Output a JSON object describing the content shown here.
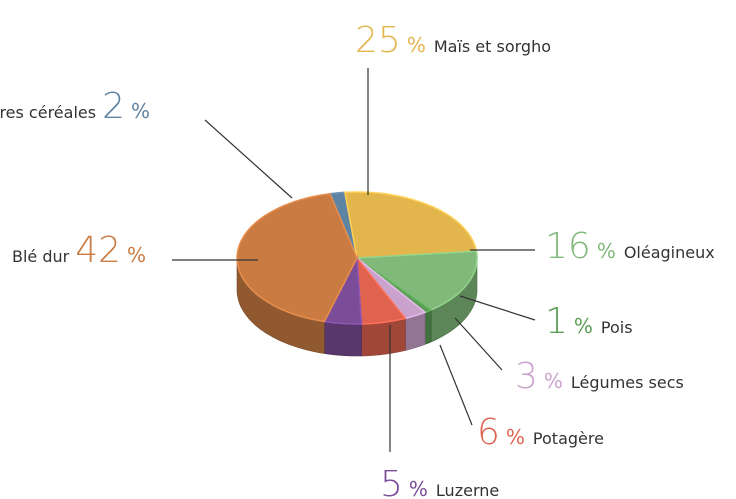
{
  "chart_data": {
    "type": "pie3d",
    "categories": [
      "Autres céréales",
      "Maïs et sorgho",
      "Oléagineux",
      "Pois",
      "Légumes secs",
      "Potagère",
      "Luzerne",
      "Blé dur"
    ],
    "values": [
      2,
      25,
      16,
      1,
      3,
      6,
      5,
      42
    ],
    "value_labels": [
      "2 %",
      "25 %",
      "16 %",
      "1 %",
      "3 %",
      "6 %",
      "5 %",
      "42 %"
    ],
    "colors": [
      "#5f84a3",
      "#e2b64c",
      "#80b97a",
      "#5a9e55",
      "#c9a3cc",
      "#e0634f",
      "#7b4c98",
      "#c97b42"
    ]
  }
}
